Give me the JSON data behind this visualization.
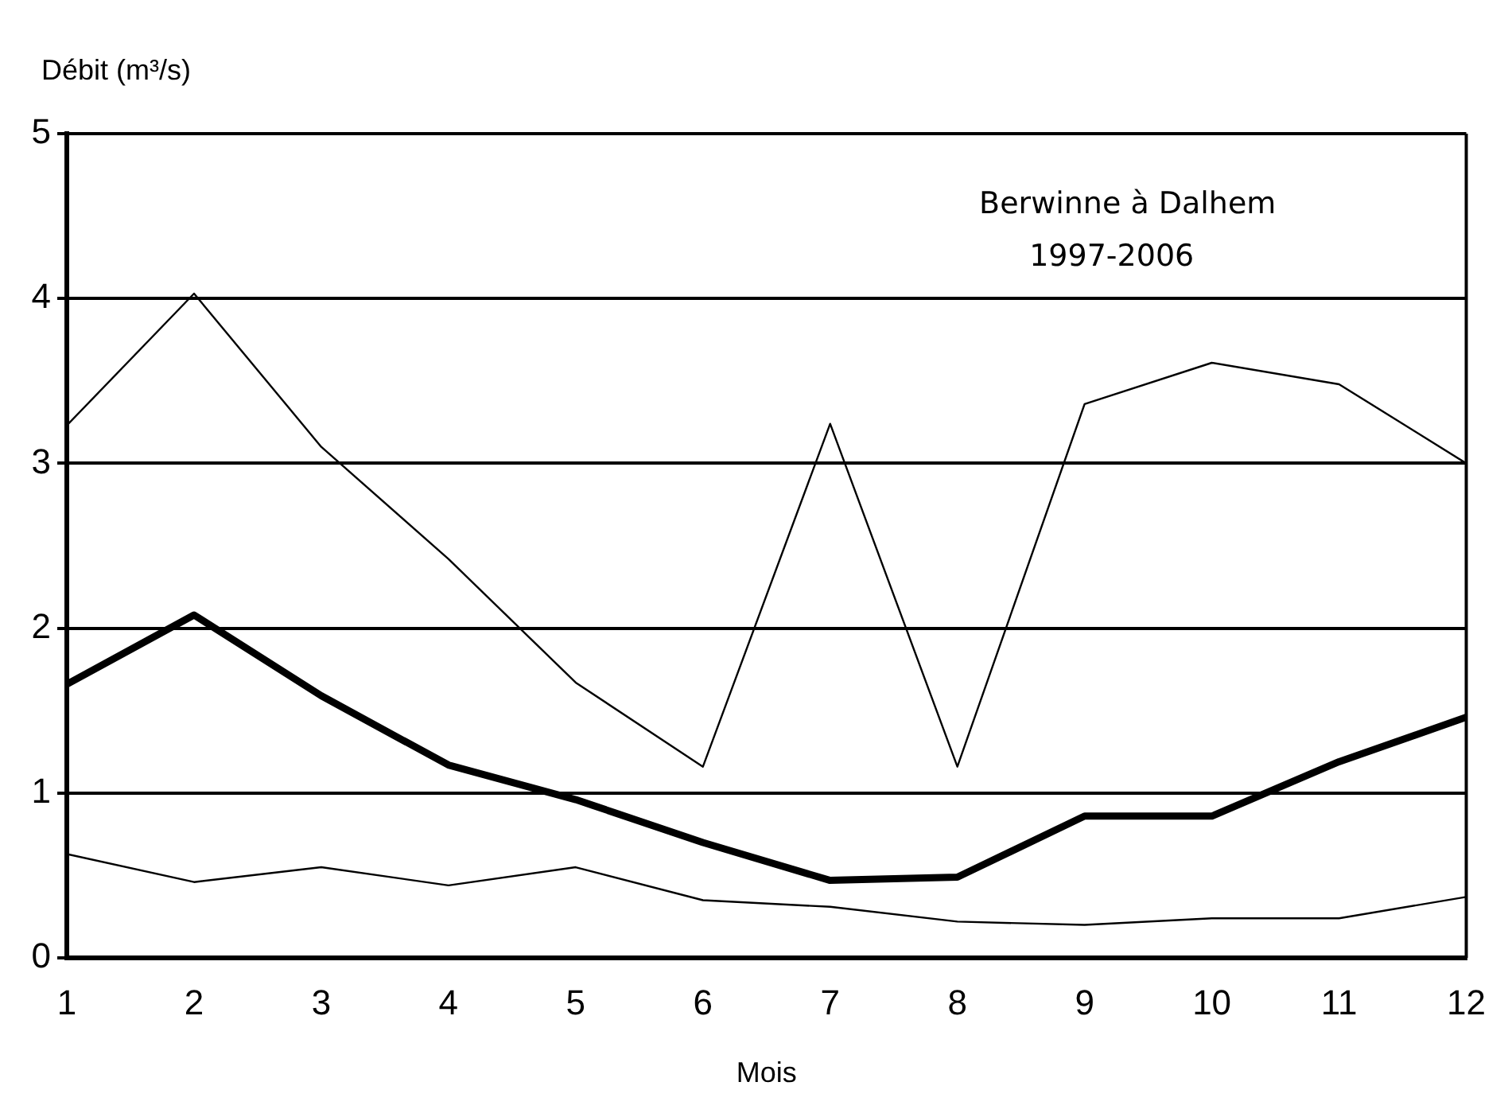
{
  "chart_data": {
    "type": "line",
    "xlabel": "Mois",
    "ylabel": "Débit (m³/s)",
    "annotations": [
      "Berwinne à Dalhem",
      "1997-2006"
    ],
    "x": [
      1,
      2,
      3,
      4,
      5,
      6,
      7,
      8,
      9,
      10,
      11,
      12
    ],
    "series": [
      {
        "color": "#000000",
        "values": [
          3.23,
          4.03,
          3.1,
          2.42,
          1.67,
          1.16,
          3.24,
          1.16,
          3.36,
          3.61,
          3.48,
          3.0
        ]
      },
      {
        "color": "#000000",
        "values": [
          1.66,
          2.08,
          1.59,
          1.17,
          0.96,
          0.7,
          0.47,
          0.49,
          0.86,
          0.86,
          1.19,
          1.46
        ]
      },
      {
        "color": "#000000",
        "values": [
          0.63,
          0.46,
          0.55,
          0.44,
          0.55,
          0.35,
          0.31,
          0.22,
          0.2,
          0.24,
          0.24,
          0.37
        ]
      }
    ],
    "xlim": [
      1,
      12
    ],
    "xticks": [
      1,
      2,
      3,
      4,
      5,
      6,
      7,
      8,
      9,
      10,
      11,
      12
    ],
    "ylim": [
      0,
      5
    ],
    "yticks": [
      0,
      1,
      2,
      3,
      4,
      5
    ],
    "grid": "y",
    "legend": false,
    "marker": "none",
    "line_style": "solid"
  }
}
